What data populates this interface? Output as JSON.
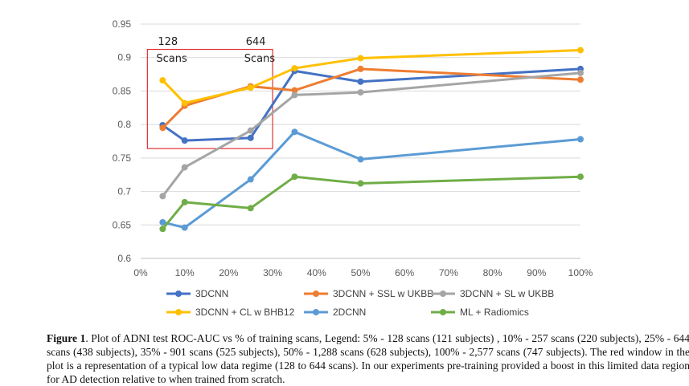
{
  "chart_data": {
    "type": "line",
    "title": "",
    "xlabel": "",
    "ylabel": "",
    "x": [
      5,
      10,
      25,
      35,
      50,
      100
    ],
    "x_ticks": [
      "0%",
      "10%",
      "20%",
      "30%",
      "40%",
      "50%",
      "60%",
      "70%",
      "80%",
      "90%",
      "100%"
    ],
    "xlim": [
      0,
      100
    ],
    "y_ticks": [
      "0.6",
      "0.65",
      "0.7",
      "0.75",
      "0.8",
      "0.85",
      "0.9",
      "0.95"
    ],
    "ylim": [
      0.6,
      0.95
    ],
    "grid": "horizontal",
    "legend_position": "bottom",
    "series": [
      {
        "name": "3DCNN",
        "color": "#4472C4",
        "values": [
          0.799,
          0.776,
          0.78,
          0.88,
          0.864,
          0.883
        ]
      },
      {
        "name": "3DCNN + SSL w UKBB",
        "color": "#ED7D31",
        "values": [
          0.795,
          0.828,
          0.857,
          0.851,
          0.883,
          0.867
        ]
      },
      {
        "name": "3DCNN + SL w UKBB",
        "color": "#A5A5A5",
        "values": [
          0.693,
          0.736,
          0.791,
          0.844,
          0.848,
          0.877
        ]
      },
      {
        "name": "3DCNN + CL w BHB12",
        "color": "#FFC000",
        "values": [
          0.866,
          0.832,
          0.855,
          0.884,
          0.899,
          0.911
        ]
      },
      {
        "name": "2DCNN",
        "color": "#5B9BD5",
        "values": [
          0.654,
          0.646,
          0.718,
          0.789,
          0.748,
          0.778
        ]
      },
      {
        "name": "ML + Radiomics",
        "color": "#70AD47",
        "values": [
          0.644,
          0.684,
          0.675,
          0.722,
          0.712,
          0.722
        ]
      }
    ],
    "annotations": [
      {
        "text": "128",
        "x": 5
      },
      {
        "text": "Scans",
        "x": 5
      },
      {
        "text": "644",
        "x": 25
      },
      {
        "text": "Scans",
        "x": 25
      }
    ],
    "highlight_box": {
      "x_range": [
        5,
        30
      ],
      "y_range": [
        0.77,
        0.911
      ],
      "color": "#E03030"
    }
  },
  "caption": {
    "label": "Figure 1",
    "text": ". Plot of ADNI test ROC-AUC vs % of training scans, Legend: 5% - 128 scans (121 subjects) , 10% - 257 scans (220 subjects), 25% - 644 scans (438 subjects), 35% - 901 scans (525 subjects), 50% - 1,288 scans (628 subjects), 100% - 2,577 scans (747 subjects). The red window in the plot is a representation of a typical low data regime (128 to 644 scans). In our experiments pre-training provided a boost in this limited data region for AD detection relative to when trained from scratch."
  }
}
